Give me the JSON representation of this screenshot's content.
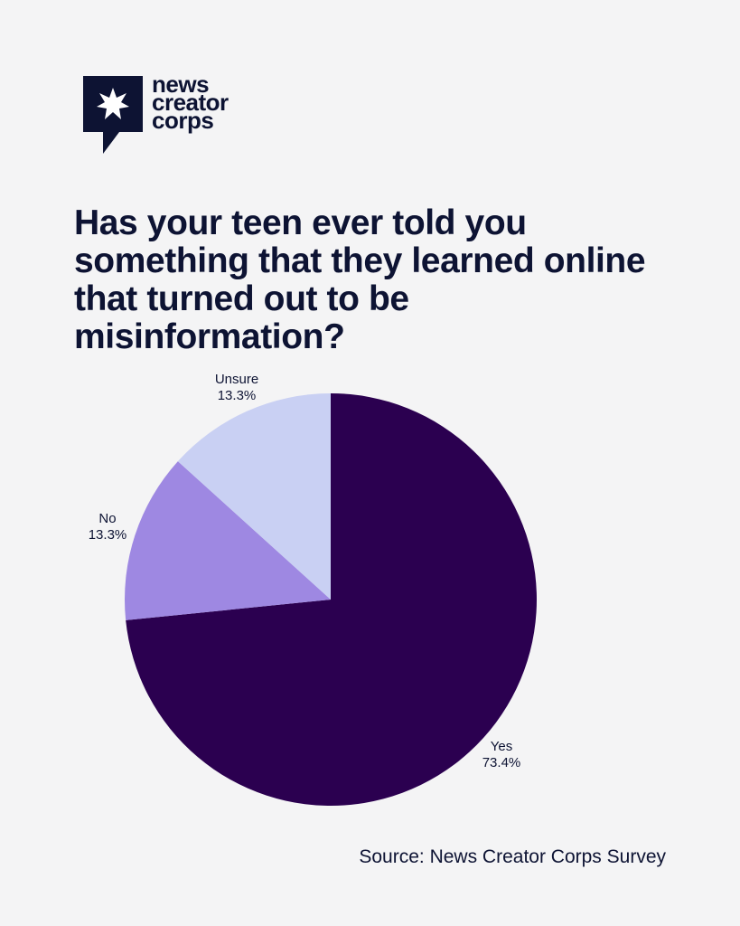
{
  "brand": {
    "logo_lines": [
      "news",
      "creator",
      "corps"
    ],
    "colors": {
      "navy": "#0d1333",
      "star": "#ffffff"
    }
  },
  "title": "Has your teen ever told you something that they learned online that turned out to be misinformation?",
  "source": "Source: News Creator Corps Survey",
  "chart_data": {
    "type": "pie",
    "slices": [
      {
        "label": "Yes",
        "value": 73.4,
        "display": "73.4%",
        "color": "#2b0050"
      },
      {
        "label": "No",
        "value": 13.3,
        "display": "13.3%",
        "color": "#9e88e2"
      },
      {
        "label": "Unsure",
        "value": 13.3,
        "display": "13.3%",
        "color": "#c9d0f3"
      }
    ],
    "start": "12 o'clock",
    "direction": "clockwise"
  }
}
